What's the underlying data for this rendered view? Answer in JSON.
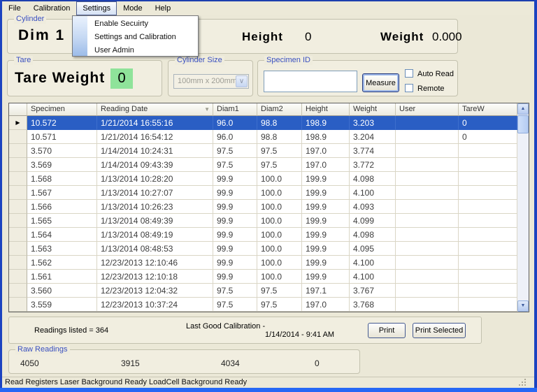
{
  "menu_bar": {
    "items": [
      "File",
      "Calibration",
      "Settings",
      "Mode",
      "Help"
    ],
    "open_item": "Settings"
  },
  "settings_menu": {
    "items": [
      "Enable Secuirty",
      "Settings and Calibration",
      "User Admin"
    ]
  },
  "cylinder": {
    "label": "Cylinder",
    "dim": "Dim 1",
    "height_label": "Height",
    "height_value": "0",
    "weight_label": "Weight",
    "weight_value": "0.000"
  },
  "tare": {
    "label": "Tare",
    "text": "Tare Weight",
    "value": "0"
  },
  "cylinder_size": {
    "label": "Cylinder Size",
    "selected_option": "100mm x 200mm"
  },
  "specimen": {
    "label": "Specimen ID",
    "input_value": "",
    "measure_label": "Measure",
    "auto_read_label": "Auto Read",
    "auto_read_checked": false,
    "remote_label": "Remote",
    "remote_checked": false
  },
  "grid": {
    "columns": [
      "Specimen",
      "Reading Date",
      "Diam1",
      "Diam2",
      "Height",
      "Weight",
      "User",
      "TareW"
    ],
    "sorted_column": "Reading Date",
    "selected_row_index": 0,
    "rows": [
      [
        "10.572",
        "1/21/2014 16:55:16",
        "96.0",
        "98.8",
        "198.9",
        "3.203",
        "",
        "0"
      ],
      [
        "10.571",
        "1/21/2014 16:54:12",
        "96.0",
        "98.8",
        "198.9",
        "3.204",
        "",
        "0"
      ],
      [
        "3.570",
        "1/14/2014 10:24:31",
        "97.5",
        "97.5",
        "197.0",
        "3.774",
        "",
        ""
      ],
      [
        "3.569",
        "1/14/2014 09:43:39",
        "97.5",
        "97.5",
        "197.0",
        "3.772",
        "",
        ""
      ],
      [
        "1.568",
        "1/13/2014 10:28:20",
        "99.9",
        "100.0",
        "199.9",
        "4.098",
        "",
        ""
      ],
      [
        "1.567",
        "1/13/2014 10:27:07",
        "99.9",
        "100.0",
        "199.9",
        "4.100",
        "",
        ""
      ],
      [
        "1.566",
        "1/13/2014 10:26:23",
        "99.9",
        "100.0",
        "199.9",
        "4.093",
        "",
        ""
      ],
      [
        "1.565",
        "1/13/2014 08:49:39",
        "99.9",
        "100.0",
        "199.9",
        "4.099",
        "",
        ""
      ],
      [
        "1.564",
        "1/13/2014 08:49:19",
        "99.9",
        "100.0",
        "199.9",
        "4.098",
        "",
        ""
      ],
      [
        "1.563",
        "1/13/2014 08:48:53",
        "99.9",
        "100.0",
        "199.9",
        "4.095",
        "",
        ""
      ],
      [
        "1.562",
        "12/23/2013 12:10:46",
        "99.9",
        "100.0",
        "199.9",
        "4.100",
        "",
        ""
      ],
      [
        "1.561",
        "12/23/2013 12:10:18",
        "99.9",
        "100.0",
        "199.9",
        "4.100",
        "",
        ""
      ],
      [
        "3.560",
        "12/23/2013 12:04:32",
        "97.5",
        "97.5",
        "197.1",
        "3.767",
        "",
        ""
      ],
      [
        "3.559",
        "12/23/2013 10:37:24",
        "97.5",
        "97.5",
        "197.0",
        "3.768",
        "",
        ""
      ]
    ]
  },
  "summary": {
    "readings_listed": "Readings listed = 364",
    "last_good_calibration_label": "Last Good Calibration  -",
    "calibration_date": "1/14/2014 - 9:41 AM",
    "print_label": "Print",
    "print_selected_label": "Print Selected"
  },
  "raw_readings": {
    "label": "Raw Readings",
    "values": [
      "4050",
      "3915",
      "4034",
      "0"
    ]
  },
  "status_bar": {
    "text": "Read Registers  Laser Background Ready  LoadCell Background Ready"
  },
  "icons": {
    "sort_desc_icon": "▼",
    "selected_row_marker": "▶",
    "scroll_up_icon": "▲",
    "scroll_down_icon": "▼",
    "combo_dropdown_icon": "∨"
  },
  "colors": {
    "selection_blue": "#2a5ec4",
    "tare_green": "#8fe39a",
    "group_label_blue": "#3a50c0",
    "window_frame_blue": "#1c43c0"
  }
}
